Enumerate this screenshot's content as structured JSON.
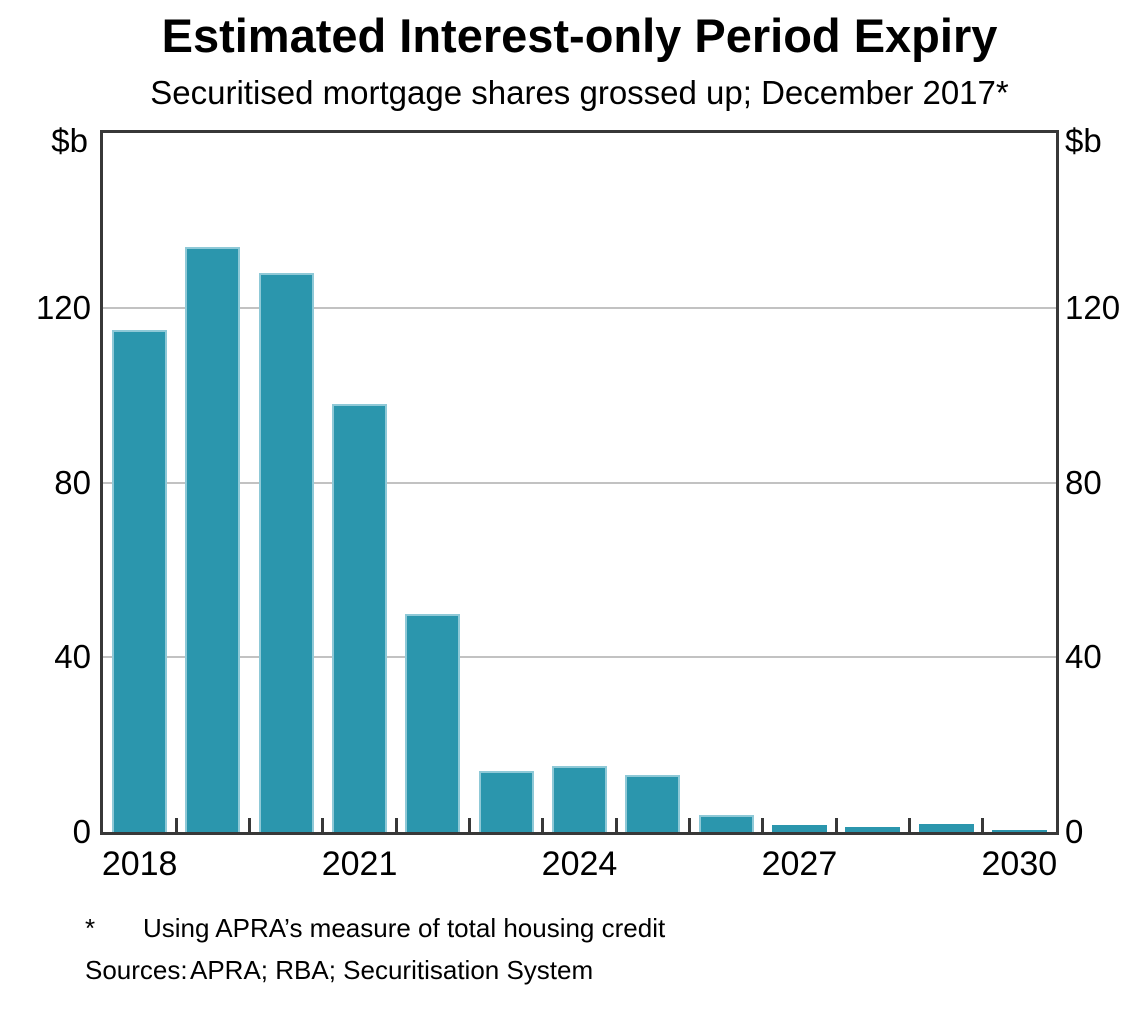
{
  "header": {
    "title": "Estimated Interest-only Period Expiry",
    "subtitle": "Securitised mortgage shares grossed up; December 2017*"
  },
  "chart_data": {
    "type": "bar",
    "title": "Estimated Interest-only Period Expiry",
    "subtitle": "Securitised mortgage shares grossed up; December 2017*",
    "unit_label_left": "$b",
    "unit_label_right": "$b",
    "categories": [
      "2018",
      "2019",
      "2020",
      "2021",
      "2022",
      "2023",
      "2024",
      "2025",
      "2026",
      "2027",
      "2028",
      "2029",
      "2030"
    ],
    "values": [
      115,
      134,
      128,
      98,
      50,
      14,
      15,
      13,
      4,
      1.5,
      1.2,
      1.8,
      0.5
    ],
    "ylim": [
      0,
      160
    ],
    "yticks": [
      0,
      40,
      80,
      120
    ],
    "ytick_labels": [
      "0",
      "40",
      "80",
      "120"
    ],
    "xtick_labels": [
      "2018",
      "2021",
      "2024",
      "2027",
      "2030"
    ],
    "xtick_indices": [
      0,
      3,
      6,
      9,
      12
    ],
    "grid": true,
    "legend_position": "none",
    "bar_color": "#2b96ad",
    "bar_edge_color": "#8fc9d7",
    "grid_color": "#c2c2c2",
    "axis_color": "#383838",
    "text_color": "#000000"
  },
  "footnotes": {
    "star_symbol": "*",
    "star_text": "Using APRA’s measure of total housing credit",
    "sources_label": "Sources:",
    "sources_text": "APRA; RBA; Securitisation System"
  }
}
